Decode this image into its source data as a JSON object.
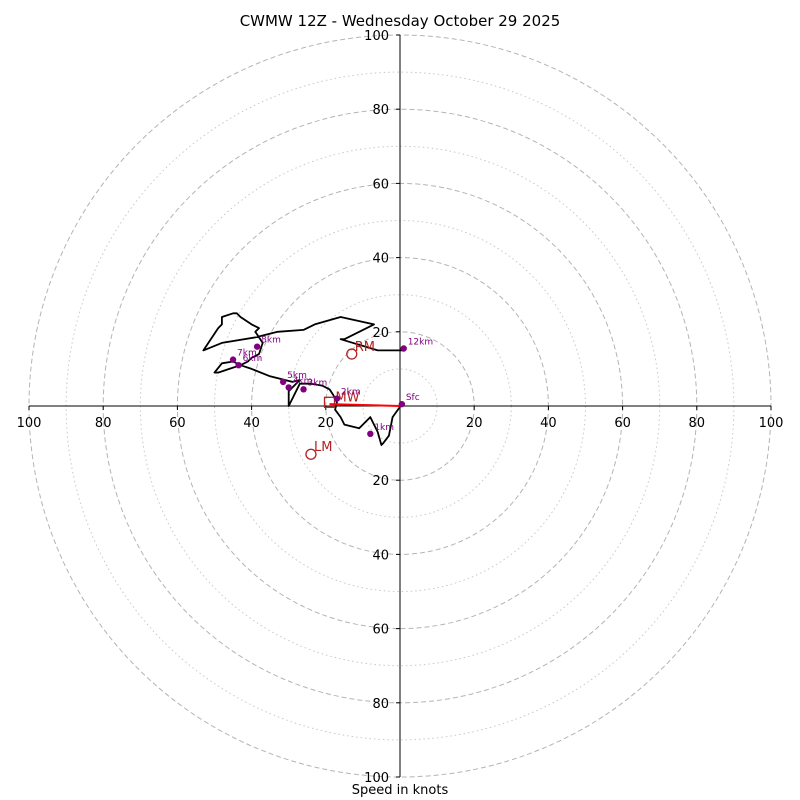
{
  "chart_data": {
    "type": "hodograph",
    "title": "CWMW 12Z - Wednesday October 29 2025",
    "xlabel": "Speed in knots",
    "axis_range": [
      -100,
      100
    ],
    "rings_major": [
      20,
      40,
      60,
      80,
      100
    ],
    "rings_minor": [
      10,
      30,
      50,
      70,
      90
    ],
    "tick_labels": [
      "100",
      "80",
      "60",
      "40",
      "20",
      "20",
      "40",
      "60",
      "80",
      "100"
    ],
    "tick_values": [
      -100,
      -80,
      -60,
      -40,
      -20,
      20,
      40,
      60,
      80,
      100
    ],
    "y_tick_labels_top": [
      "100",
      "80",
      "60",
      "40",
      "20"
    ],
    "y_tick_values_top": [
      100,
      80,
      60,
      40,
      20
    ],
    "y_tick_labels_bottom": [
      "20",
      "40",
      "60",
      "80",
      "100"
    ],
    "y_tick_values_bottom": [
      -20,
      -40,
      -60,
      -80,
      -100
    ],
    "hodograph": {
      "color": "#000000",
      "u": [
        0.5,
        -2,
        -3,
        -4.5,
        -5,
        -6,
        -8,
        -11,
        -15,
        -16,
        -17.5,
        -17,
        -18,
        -19,
        -20,
        -21,
        -24,
        -27,
        -29,
        -30,
        -30,
        -27,
        -29,
        -31,
        -35,
        -40,
        -43,
        -45,
        -48,
        -50,
        -49,
        -46,
        -43,
        -41,
        -40,
        -38,
        -37,
        -39,
        -38,
        -40,
        -43,
        -44,
        -45,
        -48,
        -48,
        -49,
        -53,
        -48,
        -39,
        -33,
        -26,
        -23,
        -16,
        -7,
        -15,
        -16,
        -6,
        -1,
        1
      ],
      "v": [
        0.5,
        -3,
        -8,
        -10,
        -10.5,
        -7,
        -3,
        -6,
        -5,
        -3,
        -1,
        1,
        3,
        4.5,
        5,
        5.5,
        6,
        6,
        2,
        0,
        4,
        7,
        6.5,
        7,
        8,
        10,
        11,
        12,
        11.5,
        9,
        9,
        10,
        11,
        12,
        13,
        14,
        17,
        20,
        21,
        22,
        24,
        25,
        25,
        24,
        22,
        21,
        15,
        17,
        18.5,
        20,
        20.5,
        22,
        24,
        22,
        18,
        18,
        15,
        15,
        15
      ]
    },
    "storm_motion": {
      "mean_wind": {
        "label": "MW",
        "u": -19,
        "v": 1
      },
      "right_mover": {
        "label": "RM",
        "u": -13,
        "v": 14
      },
      "left_mover": {
        "label": "LM",
        "u": -24,
        "v": -13
      }
    },
    "shear_vector": {
      "from_u": 0,
      "from_v": 0,
      "to_u": -19,
      "to_v": 0.5,
      "color": "#ff0000"
    },
    "height_markers": [
      {
        "label": "Sfc",
        "u": 0.5,
        "v": 0.5
      },
      {
        "label": "1km",
        "u": -8,
        "v": -7.5
      },
      {
        "label": "2km",
        "u": -17,
        "v": 2
      },
      {
        "label": "3km",
        "u": -26,
        "v": 4.5
      },
      {
        "label": "4km",
        "u": -30,
        "v": 5
      },
      {
        "label": "5km",
        "u": -31.5,
        "v": 6.5
      },
      {
        "label": "6km",
        "u": -43.5,
        "v": 11
      },
      {
        "label": "7km",
        "u": -45,
        "v": 12.5
      },
      {
        "label": "8km",
        "u": -38.5,
        "v": 16
      },
      {
        "label": "12km",
        "u": 1,
        "v": 15.5
      }
    ],
    "marker_color": "#800080",
    "storm_color": "#b22222"
  }
}
